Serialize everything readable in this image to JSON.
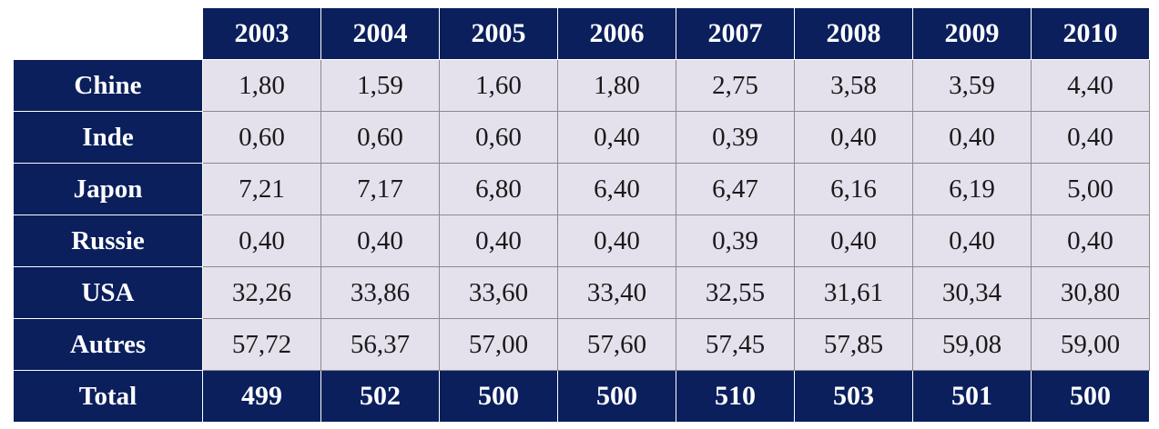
{
  "chart_data": {
    "type": "table",
    "years": [
      "2003",
      "2004",
      "2005",
      "2006",
      "2007",
      "2008",
      "2009",
      "2010"
    ],
    "rows": [
      {
        "label": "Chine",
        "values": [
          "1,80",
          "1,59",
          "1,60",
          "1,80",
          "2,75",
          "3,58",
          "3,59",
          "4,40"
        ]
      },
      {
        "label": "Inde",
        "values": [
          "0,60",
          "0,60",
          "0,60",
          "0,40",
          "0,39",
          "0,40",
          "0,40",
          "0,40"
        ]
      },
      {
        "label": "Japon",
        "values": [
          "7,21",
          "7,17",
          "6,80",
          "6,40",
          "6,47",
          "6,16",
          "6,19",
          "5,00"
        ]
      },
      {
        "label": "Russie",
        "values": [
          "0,40",
          "0,40",
          "0,40",
          "0,40",
          "0,39",
          "0,40",
          "0,40",
          "0,40"
        ]
      },
      {
        "label": "USA",
        "values": [
          "32,26",
          "33,86",
          "33,60",
          "33,40",
          "32,55",
          "31,61",
          "30,34",
          "30,80"
        ]
      },
      {
        "label": "Autres",
        "values": [
          "57,72",
          "56,37",
          "57,00",
          "57,60",
          "57,45",
          "57,85",
          "59,08",
          "59,00"
        ]
      }
    ],
    "total": {
      "label": "Total",
      "values": [
        "499",
        "502",
        "500",
        "500",
        "510",
        "503",
        "501",
        "500"
      ]
    }
  },
  "colors": {
    "header_bg": "#0a1f5c",
    "header_text": "#ffffff",
    "cell_bg": "#e4e1ec",
    "cell_text": "#1a1a1a"
  }
}
